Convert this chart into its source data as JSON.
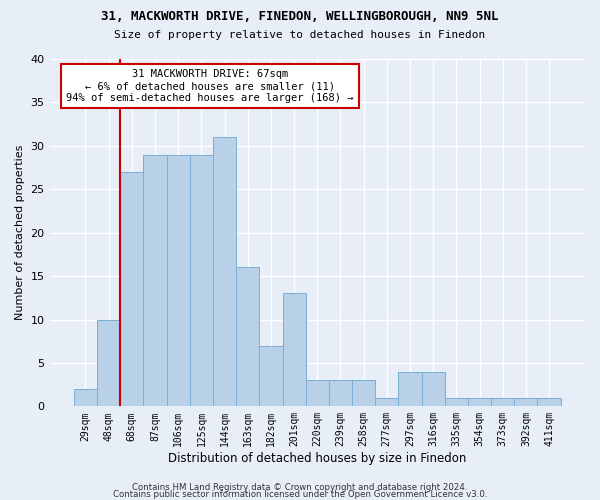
{
  "title1": "31, MACKWORTH DRIVE, FINEDON, WELLINGBOROUGH, NN9 5NL",
  "title2": "Size of property relative to detached houses in Finedon",
  "xlabel": "Distribution of detached houses by size in Finedon",
  "ylabel": "Number of detached properties",
  "categories": [
    "29sqm",
    "48sqm",
    "68sqm",
    "87sqm",
    "106sqm",
    "125sqm",
    "144sqm",
    "163sqm",
    "182sqm",
    "201sqm",
    "220sqm",
    "239sqm",
    "258sqm",
    "277sqm",
    "297sqm",
    "316sqm",
    "335sqm",
    "354sqm",
    "373sqm",
    "392sqm",
    "411sqm"
  ],
  "values": [
    2,
    10,
    27,
    29,
    29,
    29,
    31,
    16,
    7,
    13,
    3,
    3,
    3,
    1,
    4,
    4,
    1,
    1,
    1,
    1,
    1
  ],
  "bar_color": "#b8d0e8",
  "bar_edge_color": "#7aaed4",
  "annotation_line1": "31 MACKWORTH DRIVE: 67sqm",
  "annotation_line2": "← 6% of detached houses are smaller (11)",
  "annotation_line3": "94% of semi-detached houses are larger (168) →",
  "annotation_box_color": "#ffffff",
  "annotation_box_edge_color": "#cc0000",
  "vline_x_index": 1.5,
  "vline_color": "#cc0000",
  "ylim": [
    0,
    40
  ],
  "yticks": [
    0,
    5,
    10,
    15,
    20,
    25,
    30,
    35,
    40
  ],
  "footer1": "Contains HM Land Registry data © Crown copyright and database right 2024.",
  "footer2": "Contains public sector information licensed under the Open Government Licence v3.0.",
  "bg_color": "#e8eef8",
  "grid_color": "#ffffff"
}
